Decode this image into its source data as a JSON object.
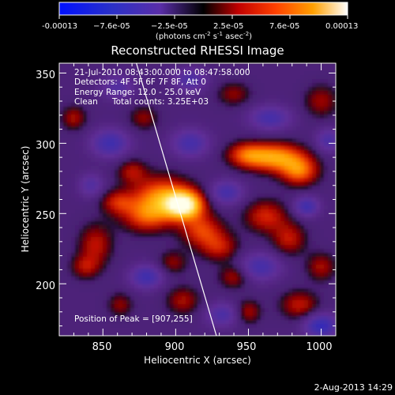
{
  "chart_data": {
    "type": "heatmap",
    "title": "Reconstructed RHESSI Image",
    "xlabel": "Heliocentric X (arcsec)",
    "ylabel": "Heliocentric Y (arcsec)",
    "xlim": [
      820,
      1010
    ],
    "ylim": [
      163,
      357
    ],
    "x_ticks": [
      850,
      900,
      950,
      1000
    ],
    "y_ticks": [
      200,
      250,
      300,
      350
    ],
    "colorbar": {
      "range": [
        -0.00013,
        0.00013
      ],
      "tick_labels": [
        "-0.00013",
        "−7.6e-05",
        "−2.5e-05",
        "2.5e-05",
        "7.6e-05",
        "0.00013"
      ],
      "unit_main": "(photons cm",
      "unit_sup1": "-2",
      "unit_s": " s",
      "unit_sup2": "-1",
      "unit_asec": " asec",
      "unit_sup3": "-2",
      "unit_close": ")"
    },
    "annotations": {
      "time_range": "21-Jul-2010 08:43:00.000 to 08:47:58.000",
      "detectors": "Detectors: 4F 5F 6F 7F 8F, Att 0",
      "energy": "Energy Range: 12.0 - 25.0 keV",
      "clean": "Clean",
      "total_counts": "Total counts: 3.25E+03",
      "peak": "Position of Peak = [907,255]"
    },
    "peak": [
      907,
      255
    ],
    "limb_line": [
      [
        873,
        357
      ],
      [
        928,
        163
      ]
    ],
    "emission_blobs": [
      {
        "x": 906,
        "y": 256,
        "sx": 9,
        "sy": 7,
        "v": 1.0
      },
      {
        "x": 890,
        "y": 262,
        "sx": 14,
        "sy": 10,
        "v": 0.6
      },
      {
        "x": 880,
        "y": 248,
        "sx": 12,
        "sy": 8,
        "v": 0.45
      },
      {
        "x": 860,
        "y": 258,
        "sx": 8,
        "sy": 6,
        "v": 0.35
      },
      {
        "x": 870,
        "y": 280,
        "sx": 7,
        "sy": 6,
        "v": 0.3
      },
      {
        "x": 918,
        "y": 238,
        "sx": 10,
        "sy": 8,
        "v": 0.45
      },
      {
        "x": 930,
        "y": 226,
        "sx": 9,
        "sy": 7,
        "v": 0.35
      },
      {
        "x": 845,
        "y": 228,
        "sx": 8,
        "sy": 10,
        "v": 0.35
      },
      {
        "x": 838,
        "y": 212,
        "sx": 7,
        "sy": 6,
        "v": 0.3
      },
      {
        "x": 830,
        "y": 318,
        "sx": 6,
        "sy": 6,
        "v": 0.3
      },
      {
        "x": 878,
        "y": 318,
        "sx": 7,
        "sy": 6,
        "v": 0.25
      },
      {
        "x": 968,
        "y": 290,
        "sx": 14,
        "sy": 7,
        "v": 0.7
      },
      {
        "x": 985,
        "y": 280,
        "sx": 9,
        "sy": 7,
        "v": 0.55
      },
      {
        "x": 948,
        "y": 292,
        "sx": 9,
        "sy": 6,
        "v": 0.4
      },
      {
        "x": 962,
        "y": 248,
        "sx": 10,
        "sy": 8,
        "v": 0.4
      },
      {
        "x": 978,
        "y": 232,
        "sx": 8,
        "sy": 8,
        "v": 0.35
      },
      {
        "x": 940,
        "y": 205,
        "sx": 7,
        "sy": 6,
        "v": 0.3
      },
      {
        "x": 950,
        "y": 180,
        "sx": 6,
        "sy": 6,
        "v": 0.3
      },
      {
        "x": 985,
        "y": 185,
        "sx": 9,
        "sy": 7,
        "v": 0.35
      },
      {
        "x": 1000,
        "y": 212,
        "sx": 7,
        "sy": 7,
        "v": 0.3
      },
      {
        "x": 905,
        "y": 188,
        "sx": 8,
        "sy": 7,
        "v": 0.3
      },
      {
        "x": 898,
        "y": 215,
        "sx": 7,
        "sy": 6,
        "v": 0.25
      },
      {
        "x": 940,
        "y": 335,
        "sx": 8,
        "sy": 6,
        "v": 0.25
      },
      {
        "x": 1000,
        "y": 330,
        "sx": 8,
        "sy": 8,
        "v": 0.28
      },
      {
        "x": 862,
        "y": 185,
        "sx": 6,
        "sy": 6,
        "v": 0.25
      },
      {
        "x": 855,
        "y": 300,
        "sx": 9,
        "sy": 7,
        "v": -0.45
      },
      {
        "x": 910,
        "y": 300,
        "sx": 9,
        "sy": 7,
        "v": -0.4
      },
      {
        "x": 935,
        "y": 265,
        "sx": 8,
        "sy": 6,
        "v": -0.4
      },
      {
        "x": 965,
        "y": 318,
        "sx": 10,
        "sy": 6,
        "v": -0.4
      },
      {
        "x": 910,
        "y": 345,
        "sx": 8,
        "sy": 6,
        "v": -0.35
      },
      {
        "x": 880,
        "y": 205,
        "sx": 8,
        "sy": 6,
        "v": -0.45
      },
      {
        "x": 958,
        "y": 212,
        "sx": 10,
        "sy": 7,
        "v": -0.4
      },
      {
        "x": 932,
        "y": 178,
        "sx": 8,
        "sy": 6,
        "v": -0.35
      },
      {
        "x": 1000,
        "y": 170,
        "sx": 8,
        "sy": 6,
        "v": -0.55
      },
      {
        "x": 990,
        "y": 255,
        "sx": 6,
        "sy": 5,
        "v": -0.45
      },
      {
        "x": 842,
        "y": 270,
        "sx": 6,
        "sy": 6,
        "v": -0.3
      },
      {
        "x": 860,
        "y": 340,
        "sx": 8,
        "sy": 6,
        "v": -0.3
      },
      {
        "x": 1005,
        "y": 302,
        "sx": 6,
        "sy": 6,
        "v": -0.35
      }
    ]
  },
  "footer": {
    "date": "2-Aug-2013 14:29"
  }
}
